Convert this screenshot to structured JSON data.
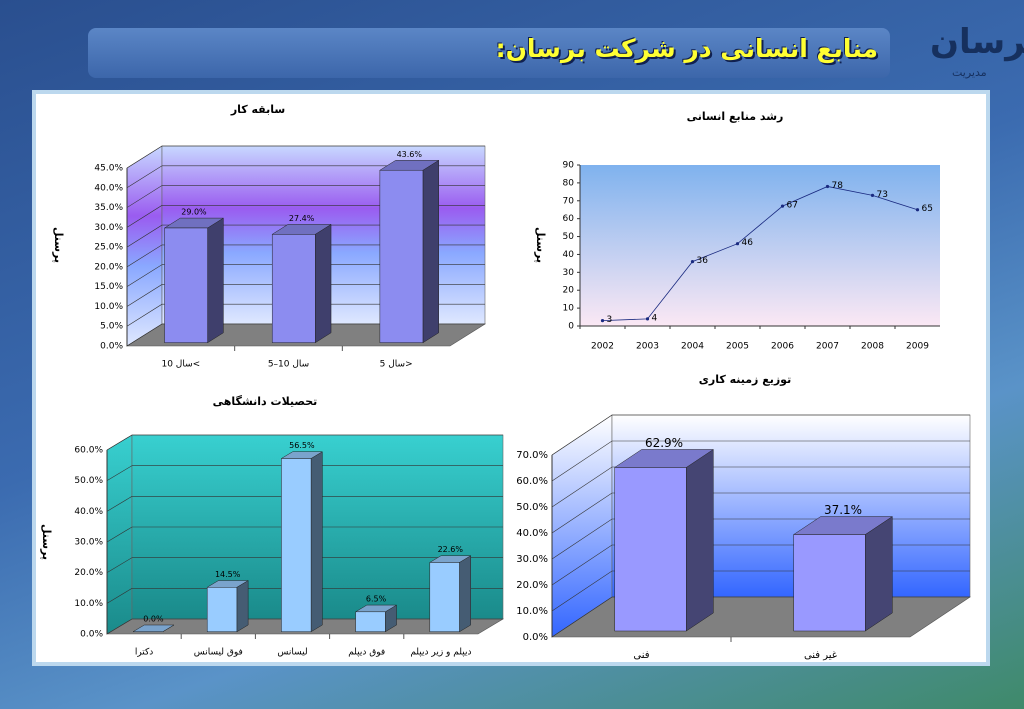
{
  "header": {
    "title": "منابع انسانی در شرکت برسان:"
  },
  "logo": {
    "name": "برسان",
    "subtitle": "مدیریت"
  },
  "chart_data": [
    {
      "type": "bar3d",
      "title": "سابقه کار",
      "y_label": "پرسنل",
      "categories": [
        "سال 10<",
        "سال 10–5",
        "سال 5>"
      ],
      "values": [
        29.0,
        27.4,
        43.6
      ],
      "value_labels": [
        "29.0%",
        "27.4%",
        "43.6%"
      ],
      "color": "#8c8cf0",
      "label_colors": [
        "#ffff66",
        "#ffff66",
        "#ffff66"
      ],
      "ylim": [
        0,
        45
      ],
      "yticks": [
        {
          "value": 0,
          "label": "0.0%"
        },
        {
          "value": 5,
          "label": "5.0%"
        },
        {
          "value": 10,
          "label": "10.0%"
        },
        {
          "value": 15,
          "label": "15.0%"
        },
        {
          "value": 20,
          "label": "20.0%"
        },
        {
          "value": 25,
          "label": "25.0%"
        },
        {
          "value": 30,
          "label": "30.0%"
        },
        {
          "value": 35,
          "label": "35.0%"
        },
        {
          "value": 40,
          "label": "40.0%"
        },
        {
          "value": 45,
          "label": "45.0%"
        }
      ],
      "grid": true
    },
    {
      "type": "line",
      "title": "رشد منابع انسانی",
      "y_label": "پرسنل",
      "categories": [
        "2002",
        "2003",
        "2004",
        "2005",
        "2006",
        "2007",
        "2008",
        "2009"
      ],
      "values": [
        3,
        4,
        36,
        46,
        67,
        78,
        73,
        65
      ],
      "color": "#1a2a80",
      "ylim": [
        0,
        90
      ],
      "yticks": [
        0,
        10,
        20,
        30,
        40,
        50,
        60,
        70,
        80,
        90
      ],
      "grid": false
    },
    {
      "type": "bar3d",
      "title": "تحصیلات دانشگاهی",
      "y_label": "پرسنل",
      "categories": [
        "دکترا",
        "فوق لیسانس",
        "لیسانس",
        "فوق دیپلم",
        "دیپلم و زیر دیپلم"
      ],
      "values": [
        0.0,
        14.5,
        56.5,
        6.5,
        22.6
      ],
      "value_labels": [
        "0.0%",
        "14.5%",
        "56.5%",
        "6.5%",
        "22.6%"
      ],
      "color": "#99ccff",
      "label_colors": [
        "#ccff33",
        "#ccff33",
        "#ccff33",
        "#ccff33",
        "#ccff33"
      ],
      "ylim": [
        0,
        60
      ],
      "yticks": [
        {
          "value": 0,
          "label": "0.0%"
        },
        {
          "value": 10,
          "label": "10.0%"
        },
        {
          "value": 20,
          "label": "20.0%"
        },
        {
          "value": 30,
          "label": "30.0%"
        },
        {
          "value": 40,
          "label": "40.0%"
        },
        {
          "value": 50,
          "label": "50.0%"
        },
        {
          "value": 60,
          "label": "60.0%"
        }
      ],
      "grid": true
    },
    {
      "type": "bar3d",
      "title": "توزیع زمینه کاری",
      "categories": [
        "فنی",
        "غیر فنی"
      ],
      "values": [
        62.9,
        37.1
      ],
      "value_labels": [
        "62.9%",
        "37.1%"
      ],
      "color": "#9999ff",
      "label_colors": [
        "#ff0000",
        "#000000"
      ],
      "ylim": [
        0,
        70
      ],
      "yticks": [
        {
          "value": 0,
          "label": "0.0%"
        },
        {
          "value": 10,
          "label": "10.0%"
        },
        {
          "value": 20,
          "label": "20.0%"
        },
        {
          "value": 30,
          "label": "30.0%"
        },
        {
          "value": 40,
          "label": "40.0%"
        },
        {
          "value": 50,
          "label": "50.0%"
        },
        {
          "value": 60,
          "label": "60.0%"
        },
        {
          "value": 70,
          "label": "70.0%"
        }
      ],
      "grid": true
    }
  ]
}
